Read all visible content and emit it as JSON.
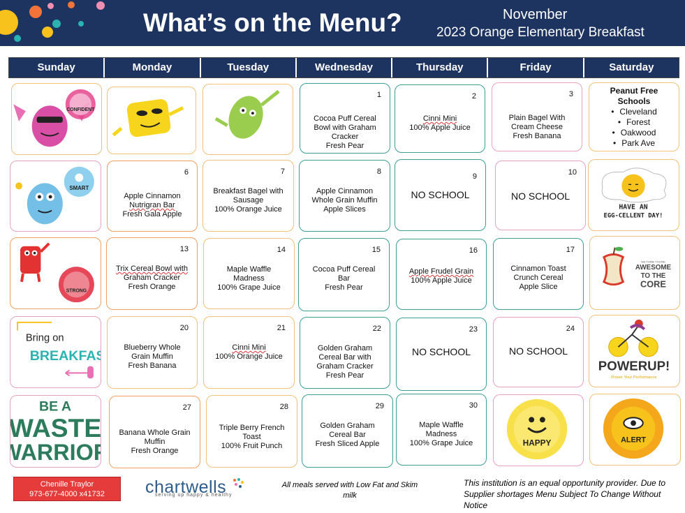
{
  "header": {
    "title": "What’s on the Menu?",
    "month": "November",
    "subtitle": "2023 Orange Elementary Breakfast"
  },
  "days": [
    "Sunday",
    "Monday",
    "Tuesday",
    "Wednesday",
    "Thursday",
    "Friday",
    "Saturday"
  ],
  "colors": {
    "navy": "#1d3461",
    "teal": "#3a9f98",
    "orange": "#f0a060",
    "pink": "#e8a1c0",
    "red": "#e53b3b"
  },
  "cells": {
    "d1": {
      "num": "1",
      "lines": [
        "Cocoa Puff Cereal",
        "Bowl with Graham",
        "Cracker",
        "Fresh Pear"
      ]
    },
    "d2": {
      "num": "2",
      "lines": [
        "Cinni Mini",
        "100% Apple Juice"
      ]
    },
    "d3": {
      "num": "3",
      "lines": [
        "Plain Bagel With",
        "Cream Cheese",
        "Fresh Banana"
      ]
    },
    "d6": {
      "num": "6",
      "lines": [
        "Apple Cinnamon",
        "Nutrigran Bar",
        "Fresh Gala Apple"
      ]
    },
    "d7": {
      "num": "7",
      "lines": [
        "Breakfast Bagel with",
        "Sausage",
        "100% Orange Juice"
      ]
    },
    "d8": {
      "num": "8",
      "lines": [
        "Apple Cinnamon",
        "Whole Grain  Muffin",
        "Apple Slices"
      ]
    },
    "d9": {
      "num": "9",
      "text": "NO SCHOOL"
    },
    "d10": {
      "num": "10",
      "text": "NO SCHOOL"
    },
    "d13": {
      "num": "13",
      "lines": [
        "Trix Cereal Bowl with",
        "Graham Cracker",
        "Fresh Orange"
      ]
    },
    "d14": {
      "num": "14",
      "lines": [
        "Maple Waffle",
        "Madness",
        "100% Grape Juice"
      ]
    },
    "d15": {
      "num": "15",
      "lines": [
        "Cocoa Puff Cereal",
        "Bar",
        "Fresh Pear"
      ]
    },
    "d16": {
      "num": "16",
      "lines": [
        "Apple Frudel Grain",
        "100% Apple Juice"
      ]
    },
    "d17": {
      "num": "17",
      "lines": [
        "Cinnamon Toast",
        "Crunch Cereal",
        "Apple Slice"
      ]
    },
    "d20": {
      "num": "20",
      "lines": [
        "Blueberry Whole",
        "Grain Muffin",
        "Fresh Banana"
      ]
    },
    "d21": {
      "num": "21",
      "lines": [
        "Cinni Mini",
        "100% Orange Juice"
      ]
    },
    "d22": {
      "num": "22",
      "lines": [
        "Golden Graham",
        "Cereal Bar with",
        "Graham Cracker",
        "Fresh Pear"
      ]
    },
    "d23": {
      "num": "23",
      "text": "NO SCHOOL"
    },
    "d24": {
      "num": "24",
      "text": "NO SCHOOL"
    },
    "d27": {
      "num": "27",
      "lines": [
        "Banana Whole Grain",
        "Muffin",
        "Fresh Orange"
      ]
    },
    "d28": {
      "num": "28",
      "lines": [
        "Triple Berry French",
        "Toast",
        "100% Fruit Punch"
      ]
    },
    "d29": {
      "num": "29",
      "lines": [
        "Golden Graham",
        "Cereal Bar",
        "Fresh Sliced Apple"
      ]
    },
    "d30": {
      "num": "30",
      "lines": [
        "Maple Waffle",
        "Madness",
        "100% Grape Juice"
      ]
    }
  },
  "peanut": {
    "title1": "Peanut Free",
    "title2": "Schools",
    "schools": [
      "Cleveland",
      "Forest",
      "Oakwood",
      "Park Ave"
    ]
  },
  "art": {
    "confident": "CONFIDENT",
    "smart": "SMART",
    "strong": "STRONG",
    "bring1": "Bring on",
    "bring2": "BREAKFAST",
    "waste1": "BE A",
    "waste2": "WASTE",
    "waste3": "WARRIOR",
    "egg1": "HAVE AN",
    "egg2": "EGG-CELLENT DAY!",
    "core1": "WE THINK YOU'RE",
    "core2": "AWESOME",
    "core3": "TO THE",
    "core4": "CORE",
    "powerup": "POWERUP!",
    "powerup_sub": "Power Your Performance",
    "happy": "HAPPY",
    "alert": "ALERT"
  },
  "footer": {
    "contact_name": "Chenille Traylor",
    "contact_phone": "973-677-4000 x41732",
    "logo": "chartwells",
    "tagline": "serving up happy & healthy",
    "milk_note": "All meals served with Low Fat and Skim milk",
    "eop_note": "This institution is an equal opportunity provider. Due to Supplier shortages Menu Subject To Change Without Notice"
  }
}
